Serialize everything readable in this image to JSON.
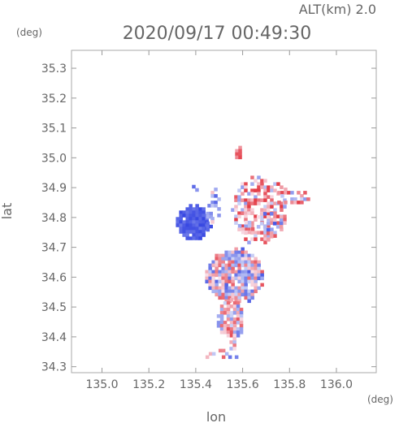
{
  "header": {
    "alt_label": "ALT(km) 2.0",
    "timestamp": "2020/09/17 00:49:30"
  },
  "chart_data": {
    "type": "heatmap",
    "title": "2020/09/17 00:49:30",
    "subtitle": "ALT(km) 2.0",
    "xlabel": "lon",
    "ylabel": "lat",
    "x_unit": "(deg)",
    "y_unit": "(deg)",
    "xlim": [
      134.87,
      136.17
    ],
    "ylim": [
      34.28,
      35.36
    ],
    "xticks": [
      135.0,
      135.2,
      135.4,
      135.6,
      135.8,
      136.0
    ],
    "xtick_labels": [
      "135.0",
      "135.2",
      "135.4",
      "135.6",
      "135.8",
      "136.0"
    ],
    "yticks": [
      34.3,
      34.4,
      34.5,
      34.6,
      34.7,
      34.8,
      34.9,
      35.0,
      35.1,
      35.2,
      35.3
    ],
    "ytick_labels": [
      "34.3",
      "34.4",
      "34.5",
      "34.6",
      "34.7",
      "34.8",
      "34.9",
      "35.0",
      "35.1",
      "35.2",
      "35.3"
    ],
    "grid": false,
    "colors": {
      "positive": "#e84050",
      "negative": "#4050e0",
      "neutral": "#c8ccf4"
    }
  }
}
